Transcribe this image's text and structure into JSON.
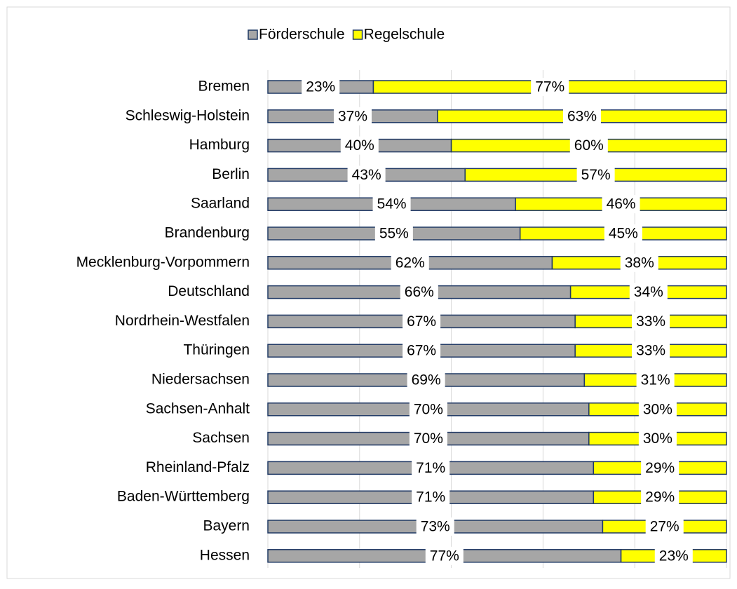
{
  "chart_data": {
    "type": "stacked_barh",
    "categories": [
      "Bremen",
      "Schleswig-Holstein",
      "Hamburg",
      "Berlin",
      "Saarland",
      "Brandenburg",
      "Mecklenburg-Vorpommern",
      "Deutschland",
      "Nordrhein-Westfalen",
      "Thüringen",
      "Niedersachsen",
      "Sachsen-Anhalt",
      "Sachsen",
      "Rheinland-Pfalz",
      "Baden-Württemberg",
      "Bayern",
      "Hessen"
    ],
    "series": [
      {
        "name": "Förderschule",
        "color": "#a6a6a6",
        "values": [
          23,
          37,
          40,
          43,
          54,
          55,
          62,
          66,
          67,
          67,
          69,
          70,
          70,
          71,
          71,
          73,
          77
        ],
        "value_labels": [
          "23%",
          "37%",
          "40%",
          "43%",
          "54%",
          "55%",
          "62%",
          "66%",
          "67%",
          "67%",
          "69%",
          "70%",
          "70%",
          "71%",
          "71%",
          "73%",
          "77%"
        ]
      },
      {
        "name": "Regelschule",
        "color": "#ffff00",
        "values": [
          77,
          63,
          60,
          57,
          46,
          45,
          38,
          34,
          33,
          33,
          31,
          30,
          30,
          29,
          29,
          27,
          23
        ],
        "value_labels": [
          "77%",
          "63%",
          "60%",
          "57%",
          "46%",
          "45%",
          "38%",
          "34%",
          "33%",
          "33%",
          "31%",
          "30%",
          "30%",
          "29%",
          "29%",
          "27%",
          "23%"
        ]
      }
    ],
    "xlim": [
      0,
      100
    ],
    "xticks": [
      0,
      20,
      40,
      60,
      80,
      100
    ],
    "grid": true,
    "legend": "top"
  }
}
